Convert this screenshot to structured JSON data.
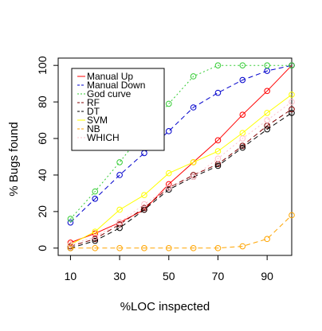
{
  "chart_data": {
    "type": "line",
    "title": "",
    "xlabel": "%LOC inspected",
    "ylabel": "% Bugs found",
    "xlim": [
      5,
      100
    ],
    "ylim": [
      -4,
      104
    ],
    "x_ticks": [
      10,
      30,
      50,
      70,
      90
    ],
    "y_ticks": [
      0,
      20,
      40,
      60,
      80,
      100
    ],
    "grid": false,
    "legend_position": "top-left",
    "x": [
      10,
      20,
      30,
      40,
      50,
      60,
      70,
      80,
      90,
      100
    ],
    "series": [
      {
        "name": "Manual Up",
        "color": "#FF0000",
        "dash": "solid",
        "values": [
          3,
          8,
          14,
          21,
          35,
          47,
          59,
          73,
          86,
          100
        ]
      },
      {
        "name": "Manual Down",
        "color": "#0000CC",
        "dash": "dashed",
        "values": [
          14,
          27,
          40,
          52,
          64,
          77,
          85,
          92,
          97,
          100
        ]
      },
      {
        "name": "God curve",
        "color": "#33CC33",
        "dash": "dotted",
        "values": [
          16,
          31,
          47,
          64,
          79,
          94,
          100,
          100,
          100,
          100
        ]
      },
      {
        "name": "RF",
        "color": "#800000",
        "dash": "dashed",
        "values": [
          1,
          5,
          13,
          22,
          33,
          40,
          46,
          56,
          67,
          76
        ]
      },
      {
        "name": "DT",
        "color": "#000000",
        "dash": "dashed",
        "values": [
          0,
          4,
          11,
          21,
          32,
          39,
          45,
          55,
          65,
          74
        ]
      },
      {
        "name": "SVM",
        "color": "#FFFF00",
        "dash": "solid",
        "values": [
          2,
          9,
          21,
          29,
          41,
          47,
          53,
          63,
          74,
          84
        ]
      },
      {
        "name": "NB",
        "color": "#FFA500",
        "dash": "dashed",
        "values": [
          0,
          0,
          0,
          0,
          0,
          0,
          0,
          1,
          5,
          18
        ]
      },
      {
        "name": "WHICH",
        "color": "#FFC0CB",
        "dash": "dotted",
        "values": [
          2,
          6,
          14,
          24,
          33,
          39,
          49,
          60,
          70,
          80
        ]
      }
    ]
  }
}
